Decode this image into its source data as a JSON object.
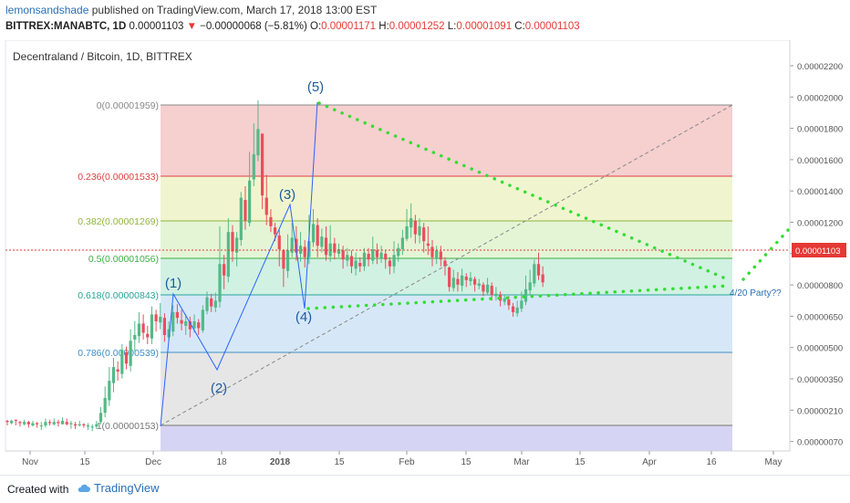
{
  "header": {
    "publisher": "lemonsandshade",
    "published_text": "published on TradingView.com, March 17, 2018 13:00 EST",
    "symbol_line": "BITTREX:MANABTC, 1D",
    "last": "0.00001103",
    "change_arrow": "▼",
    "change": "−0.00000068 (−5.81%)",
    "o_label": "O:",
    "o_value": "0.00001171",
    "h_label": "H:",
    "h_value": "0.00001252",
    "l_label": "L:",
    "l_value": "0.00001091",
    "c_label": "C:",
    "c_value": "0.00001103"
  },
  "footer": {
    "created_with": "Created with",
    "brand": "TradingView",
    "brand_icon": "tradingview-cloud-icon"
  },
  "colors": {
    "up": "#53b987",
    "down": "#eb4d5c",
    "trend": "#33dd33",
    "wave": "#2962ff",
    "wave_label": "#1e5a9e",
    "price_line": "#e53935"
  },
  "chart_data": {
    "type": "candlestick",
    "title": "Decentraland / Bitcoin, 1D, BITTREX",
    "price_tag": "0.00001103",
    "y_ticks": [
      "0.00002200",
      "0.00002000",
      "0.00001800",
      "0.00001600",
      "0.00001400",
      "0.00001200",
      "0.00001000",
      "0.00000800",
      "0.00000650",
      "0.00000500",
      "0.00000350",
      "0.00000210",
      "0.00000070"
    ],
    "x_ticks": [
      "Nov",
      "15",
      "Dec",
      "18",
      "2018",
      "15",
      "Feb",
      "15",
      "Mar",
      "15",
      "Apr",
      "16",
      "May"
    ],
    "fib_levels": [
      {
        "ratio": "0",
        "price": "0.00001959",
        "label": "0(0.00001959)",
        "color": "#888888"
      },
      {
        "ratio": "0.236",
        "price": "0.00001533",
        "label": "0.236(0.00001533)",
        "color": "#e04040"
      },
      {
        "ratio": "0.382",
        "price": "0.00001269",
        "label": "0.382(0.00001269)",
        "color": "#90b53a"
      },
      {
        "ratio": "0.5",
        "price": "0.00001056",
        "label": "0.5(0.00001056)",
        "color": "#3cb043"
      },
      {
        "ratio": "0.618",
        "price": "0.00000843",
        "label": "0.618(0.00000843)",
        "color": "#26a69a"
      },
      {
        "ratio": "0.786",
        "price": "0.00000539",
        "label": "0.786(0.00000539)",
        "color": "#3d8fc9"
      },
      {
        "ratio": "1",
        "price": "0.00000153",
        "label": "1(0.00000153)",
        "color": "#777777"
      }
    ],
    "wave_labels": [
      "(1)",
      "(2)",
      "(3)",
      "(4)",
      "(5)"
    ],
    "annotation": "4/20 Party??",
    "candles": [
      [
        225,
        224,
        226,
        221
      ],
      [
        223,
        225,
        226,
        222
      ],
      [
        226,
        225,
        226,
        221
      ],
      [
        224,
        223,
        225,
        220
      ],
      [
        222,
        224,
        226,
        221
      ],
      [
        224,
        222,
        225,
        219
      ],
      [
        221,
        223,
        225,
        220
      ],
      [
        223,
        222,
        224,
        219
      ],
      [
        221,
        221,
        224,
        217
      ],
      [
        221,
        224,
        227,
        219
      ],
      [
        224,
        223,
        226,
        221
      ],
      [
        222,
        224,
        227,
        221
      ],
      [
        224,
        223,
        226,
        220
      ],
      [
        222,
        225,
        228,
        222
      ],
      [
        224,
        222,
        227,
        221
      ],
      [
        222,
        223,
        225,
        218
      ],
      [
        222,
        221,
        224,
        218
      ],
      [
        221,
        222,
        225,
        220
      ],
      [
        222,
        221,
        223,
        219
      ],
      [
        220,
        221,
        223,
        217
      ],
      [
        220,
        220,
        222,
        216
      ],
      [
        220,
        222,
        225,
        218
      ],
      [
        224,
        232,
        237,
        222
      ],
      [
        232,
        245,
        255,
        228
      ],
      [
        243,
        260,
        272,
        238
      ],
      [
        258,
        272,
        280,
        250
      ],
      [
        270,
        268,
        277,
        260
      ],
      [
        266,
        287,
        292,
        262
      ],
      [
        285,
        275,
        290,
        270
      ],
      [
        273,
        295,
        305,
        268
      ],
      [
        296,
        300,
        312,
        286
      ],
      [
        299,
        310,
        320,
        293
      ],
      [
        310,
        302,
        318,
        296
      ],
      [
        301,
        298,
        308,
        292
      ],
      [
        297,
        318,
        325,
        292
      ],
      [
        318,
        312,
        322,
        303
      ],
      [
        311,
        316,
        328,
        305
      ],
      [
        315,
        300,
        319,
        294
      ],
      [
        298,
        305,
        312,
        295
      ],
      [
        303,
        320,
        326,
        299
      ],
      [
        320,
        315,
        327,
        310
      ],
      [
        313,
        310,
        322,
        304
      ],
      [
        308,
        312,
        318,
        300
      ],
      [
        312,
        305,
        316,
        298
      ],
      [
        306,
        312,
        318,
        302
      ],
      [
        311,
        306,
        314,
        300
      ],
      [
        304,
        322,
        326,
        302
      ],
      [
        321,
        333,
        338,
        318
      ],
      [
        332,
        325,
        336,
        320
      ],
      [
        324,
        330,
        337,
        320
      ],
      [
        329,
        362,
        395,
        324
      ],
      [
        362,
        352,
        370,
        340
      ],
      [
        351,
        390,
        402,
        346
      ],
      [
        390,
        373,
        396,
        364
      ],
      [
        372,
        385,
        390,
        360
      ],
      [
        383,
        420,
        425,
        378
      ],
      [
        418,
        400,
        430,
        392
      ],
      [
        398,
        435,
        460,
        395
      ],
      [
        436,
        458,
        485,
        430
      ],
      [
        457,
        480,
        505,
        452
      ],
      [
        476,
        422,
        470,
        410
      ],
      [
        420,
        405,
        440,
        396
      ],
      [
        403,
        395,
        410,
        390
      ],
      [
        394,
        388,
        398,
        382
      ],
      [
        387,
        375,
        392,
        360
      ],
      [
        374,
        358,
        375,
        342
      ],
      [
        356,
        374,
        388,
        350
      ],
      [
        372,
        385,
        398,
        368
      ],
      [
        384,
        372,
        395,
        365
      ],
      [
        371,
        378,
        390,
        364
      ],
      [
        377,
        368,
        383,
        359
      ],
      [
        368,
        382,
        405,
        362
      ],
      [
        381,
        397,
        410,
        377
      ],
      [
        396,
        378,
        402,
        368
      ],
      [
        377,
        386,
        393,
        372
      ],
      [
        385,
        370,
        395,
        365
      ],
      [
        369,
        380,
        396,
        364
      ],
      [
        380,
        372,
        385,
        366
      ],
      [
        371,
        375,
        380,
        368
      ],
      [
        374,
        366,
        378,
        358
      ],
      [
        365,
        370,
        376,
        360
      ],
      [
        369,
        360,
        374,
        354
      ],
      [
        358,
        365,
        372,
        352
      ],
      [
        363,
        360,
        368,
        355
      ],
      [
        360,
        372,
        376,
        356
      ],
      [
        371,
        366,
        376,
        360
      ],
      [
        365,
        375,
        386,
        362
      ],
      [
        374,
        368,
        380,
        362
      ],
      [
        367,
        372,
        378,
        363
      ],
      [
        371,
        366,
        374,
        358
      ],
      [
        365,
        360,
        368,
        353
      ],
      [
        360,
        370,
        382,
        354
      ],
      [
        369,
        376,
        380,
        364
      ],
      [
        375,
        385,
        392,
        370
      ],
      [
        384,
        395,
        410,
        382
      ],
      [
        394,
        402,
        415,
        385
      ],
      [
        400,
        388,
        405,
        380
      ],
      [
        387,
        395,
        402,
        380
      ],
      [
        394,
        382,
        398,
        372
      ],
      [
        380,
        378,
        395,
        370
      ],
      [
        377,
        368,
        383,
        360
      ],
      [
        367,
        374,
        378,
        362
      ],
      [
        373,
        366,
        378,
        360
      ],
      [
        365,
        360,
        368,
        352
      ],
      [
        359,
        342,
        360,
        338
      ],
      [
        341,
        350,
        357,
        338
      ],
      [
        349,
        344,
        355,
        338
      ],
      [
        343,
        352,
        358,
        338
      ],
      [
        351,
        348,
        354,
        342
      ],
      [
        347,
        350,
        355,
        343
      ],
      [
        349,
        344,
        351,
        338
      ],
      [
        343,
        345,
        349,
        340
      ],
      [
        344,
        338,
        346,
        334
      ],
      [
        337,
        344,
        350,
        335
      ],
      [
        343,
        335,
        346,
        330
      ],
      [
        334,
        336,
        342,
        330
      ],
      [
        335,
        330,
        338,
        325
      ],
      [
        329,
        332,
        335,
        326
      ],
      [
        331,
        326,
        334,
        322
      ],
      [
        325,
        320,
        328,
        316
      ],
      [
        319,
        324,
        330,
        316
      ],
      [
        323,
        330,
        338,
        320
      ],
      [
        329,
        340,
        352,
        326
      ],
      [
        339,
        346,
        357,
        335
      ],
      [
        345,
        362,
        366,
        342
      ],
      [
        362,
        352,
        372,
        348
      ],
      [
        353,
        346,
        360,
        342
      ]
    ]
  }
}
